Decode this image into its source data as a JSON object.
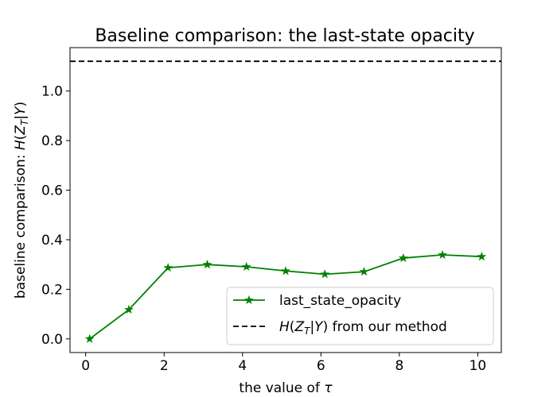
{
  "chart_data": {
    "type": "line",
    "title": "Baseline comparison: the last-state opacity",
    "xlabel": "the value of τ",
    "ylabel": "baseline comparison: H(Z_T|Y)",
    "xlim": [
      -0.4,
      10.6
    ],
    "ylim": [
      -0.055,
      1.175
    ],
    "xticks": [
      "0",
      "2",
      "4",
      "6",
      "8",
      "10"
    ],
    "yticks": [
      "0.0",
      "0.2",
      "0.4",
      "0.6",
      "0.8",
      "1.0"
    ],
    "grid": false,
    "legend_position": "lower-right",
    "series": [
      {
        "name": "last_state_opacity",
        "color": "#008000",
        "marker": "star",
        "x": [
          0.1,
          1.1,
          2.1,
          3.1,
          4.1,
          5.1,
          6.1,
          7.1,
          8.1,
          9.1,
          10.1
        ],
        "y": [
          0.0,
          0.118,
          0.287,
          0.3,
          0.291,
          0.274,
          0.261,
          0.271,
          0.326,
          0.339,
          0.332
        ]
      }
    ],
    "reference_lines": [
      {
        "name": "H(Z_T|Y) from our method",
        "y": 1.12,
        "style": "dashed",
        "color": "#000000"
      }
    ]
  }
}
